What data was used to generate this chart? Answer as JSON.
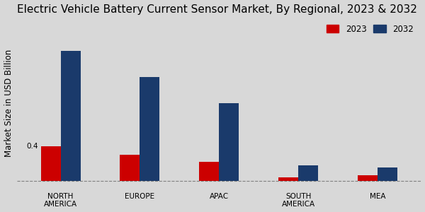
{
  "title": "Electric Vehicle Battery Current Sensor Market, By Regional, 2023 & 2032",
  "categories": [
    "NORTH\nAMERICA",
    "EUROPE",
    "APAC",
    "SOUTH\nAMERICA",
    "MEA"
  ],
  "values_2023": [
    0.4,
    0.3,
    0.22,
    0.04,
    0.07
  ],
  "values_2032": [
    1.5,
    1.2,
    0.9,
    0.18,
    0.16
  ],
  "color_2023": "#cc0000",
  "color_2032": "#1a3a6b",
  "ylabel": "Market Size in USD Billion",
  "legend_labels": [
    "2023",
    "2032"
  ],
  "annotation_text": "0.4",
  "bar_width": 0.25,
  "background_color": "#d8d8d8",
  "title_fontsize": 11.0,
  "axis_label_fontsize": 8.5,
  "tick_fontsize": 7.5,
  "legend_fontsize": 8.5,
  "ylim_max": 1.85
}
